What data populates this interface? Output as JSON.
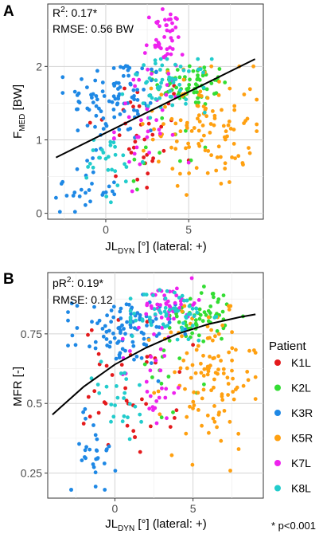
{
  "panels": {
    "A": {
      "label": "A",
      "stats": {
        "r2_pre": "R",
        "r2_sup": "2",
        "r2_post": ": 0.17*",
        "rmse": "RMSE: 0.56 BW"
      },
      "ylabel": {
        "main": "F",
        "sub": "MED",
        "rest": " [BW]"
      },
      "xlabel": {
        "main": "JL",
        "sub": "DYN",
        "rest": " [°] (lateral: +)"
      }
    },
    "B": {
      "label": "B",
      "stats": {
        "r2_pre": "pR",
        "r2_sup": "2",
        "r2_post": ": 0.19*",
        "rmse": "RMSE: 0.12"
      },
      "ylabel": {
        "main": "MFR [-]",
        "sub": "",
        "rest": ""
      },
      "xlabel": {
        "main": "JL",
        "sub": "DYN",
        "rest": " [°] (lateral: +)"
      }
    }
  },
  "legend": {
    "title": "Patient"
  },
  "footnote": "* p<0.001",
  "chart_data": [
    {
      "type": "scatter",
      "panel": "A",
      "xlim": [
        -3.5,
        9.5
      ],
      "ylim": [
        -0.08,
        2.85
      ],
      "xticks": [
        0,
        5
      ],
      "yticks": [
        0,
        1,
        2
      ],
      "grid": true,
      "fit": {
        "type": "linear",
        "x": [
          -3.0,
          9.0
        ],
        "y": [
          0.76,
          2.1
        ]
      },
      "series": [
        {
          "name": "K1L",
          "color": "#e41a1c",
          "clusters": [
            {
              "n": 35,
              "cx": 2.0,
              "cy": 1.05,
              "sx": 1.6,
              "sy": 0.45,
              "xmin": -1.5,
              "xmax": 5.0,
              "ymin": 0.35,
              "ymax": 2.05
            }
          ]
        },
        {
          "name": "K2L",
          "color": "#33dd33",
          "clusters": [
            {
              "n": 70,
              "cx": 5.2,
              "cy": 1.75,
              "sx": 1.1,
              "sy": 0.15,
              "xmin": 2.8,
              "xmax": 8.0,
              "ymin": 1.35,
              "ymax": 2.05
            },
            {
              "n": 12,
              "cx": 3.5,
              "cy": 0.85,
              "sx": 1.5,
              "sy": 0.3,
              "xmin": 1.0,
              "xmax": 6.0,
              "ymin": 0.3,
              "ymax": 1.4
            }
          ]
        },
        {
          "name": "K3R",
          "color": "#1e88e5",
          "clusters": [
            {
              "n": 95,
              "cx": 0.6,
              "cy": 1.55,
              "sx": 1.5,
              "sy": 0.3,
              "xmin": -2.6,
              "xmax": 4.5,
              "ymin": 0.6,
              "ymax": 2.05
            },
            {
              "n": 28,
              "cx": -1.2,
              "cy": 0.35,
              "sx": 1.0,
              "sy": 0.22,
              "xmin": -3.0,
              "xmax": 1.5,
              "ymin": 0.02,
              "ymax": 0.9
            }
          ]
        },
        {
          "name": "K5R",
          "color": "#ffa010",
          "clusters": [
            {
              "n": 115,
              "cx": 6.0,
              "cy": 1.2,
              "sx": 1.5,
              "sy": 0.42,
              "xmin": 1.5,
              "xmax": 9.1,
              "ymin": 0.25,
              "ymax": 2.0
            }
          ]
        },
        {
          "name": "K7L",
          "color": "#ee22ee",
          "clusters": [
            {
              "n": 45,
              "cx": 3.5,
              "cy": 2.35,
              "sx": 0.6,
              "sy": 0.22,
              "xmin": 2.2,
              "xmax": 5.0,
              "ymin": 1.8,
              "ymax": 2.78
            },
            {
              "n": 35,
              "cx": 2.5,
              "cy": 1.2,
              "sx": 1.1,
              "sy": 0.45,
              "xmin": 0.5,
              "xmax": 5.0,
              "ymin": 0.3,
              "ymax": 1.9
            }
          ]
        },
        {
          "name": "K8L",
          "color": "#22cccc",
          "clusters": [
            {
              "n": 55,
              "cx": 3.8,
              "cy": 1.75,
              "sx": 1.2,
              "sy": 0.18,
              "xmin": 1.0,
              "xmax": 6.5,
              "ymin": 1.3,
              "ymax": 2.1
            },
            {
              "n": 28,
              "cx": 0.3,
              "cy": 0.65,
              "sx": 1.0,
              "sy": 0.25,
              "xmin": -1.5,
              "xmax": 2.5,
              "ymin": 0.15,
              "ymax": 1.1
            }
          ]
        }
      ]
    },
    {
      "type": "scatter",
      "panel": "B",
      "xlim": [
        -4.3,
        9.5
      ],
      "ylim": [
        0.16,
        0.97
      ],
      "xticks": [
        0,
        5
      ],
      "yticks": [
        0.25,
        0.5,
        0.75
      ],
      "grid": true,
      "fit": {
        "type": "curve",
        "x": [
          -4.0,
          -2.0,
          0.0,
          2.0,
          4.0,
          6.0,
          8.0,
          9.0
        ],
        "y": [
          0.46,
          0.56,
          0.64,
          0.7,
          0.75,
          0.785,
          0.81,
          0.82
        ]
      },
      "series": [
        {
          "name": "K1L",
          "color": "#e41a1c",
          "clusters": [
            {
              "n": 40,
              "cx": 1.0,
              "cy": 0.55,
              "sx": 1.5,
              "sy": 0.12,
              "xmin": -2.0,
              "xmax": 5.0,
              "ymin": 0.3,
              "ymax": 0.8
            }
          ]
        },
        {
          "name": "K2L",
          "color": "#33dd33",
          "clusters": [
            {
              "n": 60,
              "cx": 5.5,
              "cy": 0.82,
              "sx": 1.0,
              "sy": 0.05,
              "xmin": 3.5,
              "xmax": 8.2,
              "ymin": 0.7,
              "ymax": 0.92
            },
            {
              "n": 12,
              "cx": 3.5,
              "cy": 0.6,
              "sx": 1.0,
              "sy": 0.06,
              "xmin": 1.5,
              "xmax": 6.5,
              "ymin": 0.45,
              "ymax": 0.72
            }
          ]
        },
        {
          "name": "K3R",
          "color": "#1e88e5",
          "clusters": [
            {
              "n": 100,
              "cx": 0.6,
              "cy": 0.76,
              "sx": 1.6,
              "sy": 0.06,
              "xmin": -3.0,
              "xmax": 4.5,
              "ymin": 0.55,
              "ymax": 0.9
            },
            {
              "n": 30,
              "cx": -1.5,
              "cy": 0.33,
              "sx": 0.8,
              "sy": 0.08,
              "xmin": -2.8,
              "xmax": 1.0,
              "ymin": 0.19,
              "ymax": 0.6
            }
          ]
        },
        {
          "name": "K5R",
          "color": "#ffa010",
          "clusters": [
            {
              "n": 115,
              "cx": 6.0,
              "cy": 0.6,
              "sx": 1.5,
              "sy": 0.13,
              "xmin": 2.0,
              "xmax": 9.0,
              "ymin": 0.22,
              "ymax": 0.85
            }
          ]
        },
        {
          "name": "K7L",
          "color": "#ee22ee",
          "clusters": [
            {
              "n": 45,
              "cx": 3.6,
              "cy": 0.86,
              "sx": 0.8,
              "sy": 0.04,
              "xmin": 2.0,
              "xmax": 5.5,
              "ymin": 0.72,
              "ymax": 0.95
            },
            {
              "n": 30,
              "cx": 2.5,
              "cy": 0.6,
              "sx": 1.2,
              "sy": 0.1,
              "xmin": 0.5,
              "xmax": 5.0,
              "ymin": 0.4,
              "ymax": 0.78
            }
          ]
        },
        {
          "name": "K8L",
          "color": "#22cccc",
          "clusters": [
            {
              "n": 60,
              "cx": 3.5,
              "cy": 0.82,
              "sx": 1.3,
              "sy": 0.05,
              "xmin": 1.0,
              "xmax": 6.5,
              "ymin": 0.68,
              "ymax": 0.95
            },
            {
              "n": 25,
              "cx": 0.3,
              "cy": 0.5,
              "sx": 1.0,
              "sy": 0.08,
              "xmin": -1.5,
              "xmax": 2.5,
              "ymin": 0.3,
              "ymax": 0.65
            }
          ]
        }
      ]
    }
  ]
}
